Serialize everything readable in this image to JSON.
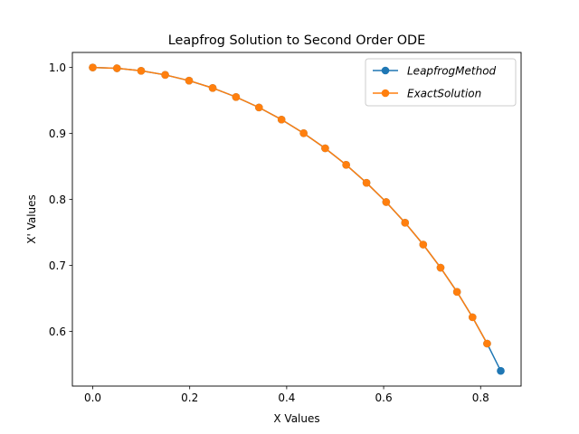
{
  "chart_data": {
    "type": "line",
    "title": "Leapfrog Solution to Second Order ODE",
    "xlabel": "X Values",
    "ylabel": "X' Values",
    "xlim": [
      -0.042,
      0.8835
    ],
    "ylim": [
      0.5173,
      1.0228
    ],
    "xticks": [
      0.0,
      0.2,
      0.4,
      0.6,
      0.8
    ],
    "yticks": [
      0.6,
      0.7,
      0.8,
      0.9,
      1.0
    ],
    "xtick_labels": [
      "0.0",
      "0.2",
      "0.4",
      "0.6",
      "0.8"
    ],
    "ytick_labels": [
      "0.6",
      "0.7",
      "0.8",
      "0.9",
      "1.0"
    ],
    "grid": false,
    "legend_position": "top-right",
    "series": [
      {
        "name": "LeapfrogMethod",
        "color": "#1f77b4",
        "x": [
          0.0,
          0.05,
          0.0998,
          0.1494,
          0.1987,
          0.2474,
          0.2955,
          0.3429,
          0.3894,
          0.435,
          0.4794,
          0.5227,
          0.5646,
          0.6052,
          0.6442,
          0.6816,
          0.7174,
          0.7513,
          0.7833,
          0.8134,
          0.8415
        ],
        "y": [
          1.0,
          0.9988,
          0.995,
          0.9888,
          0.9801,
          0.9689,
          0.9553,
          0.9394,
          0.9211,
          0.9004,
          0.8776,
          0.8525,
          0.8253,
          0.7961,
          0.7648,
          0.7317,
          0.6967,
          0.66,
          0.6216,
          0.5817,
          0.5403
        ]
      },
      {
        "name": "ExactSolution",
        "color": "#ff7f0e",
        "x": [
          0.0,
          0.05,
          0.0998,
          0.1494,
          0.1987,
          0.2474,
          0.2955,
          0.3429,
          0.3894,
          0.435,
          0.4794,
          0.5227,
          0.5646,
          0.6052,
          0.6442,
          0.6816,
          0.7174,
          0.7513,
          0.7833,
          0.8134
        ],
        "y": [
          1.0,
          0.9988,
          0.995,
          0.9888,
          0.9801,
          0.9689,
          0.9553,
          0.9394,
          0.9211,
          0.9004,
          0.8776,
          0.8525,
          0.8253,
          0.7961,
          0.7648,
          0.7317,
          0.6967,
          0.66,
          0.6216,
          0.5817
        ]
      }
    ]
  }
}
